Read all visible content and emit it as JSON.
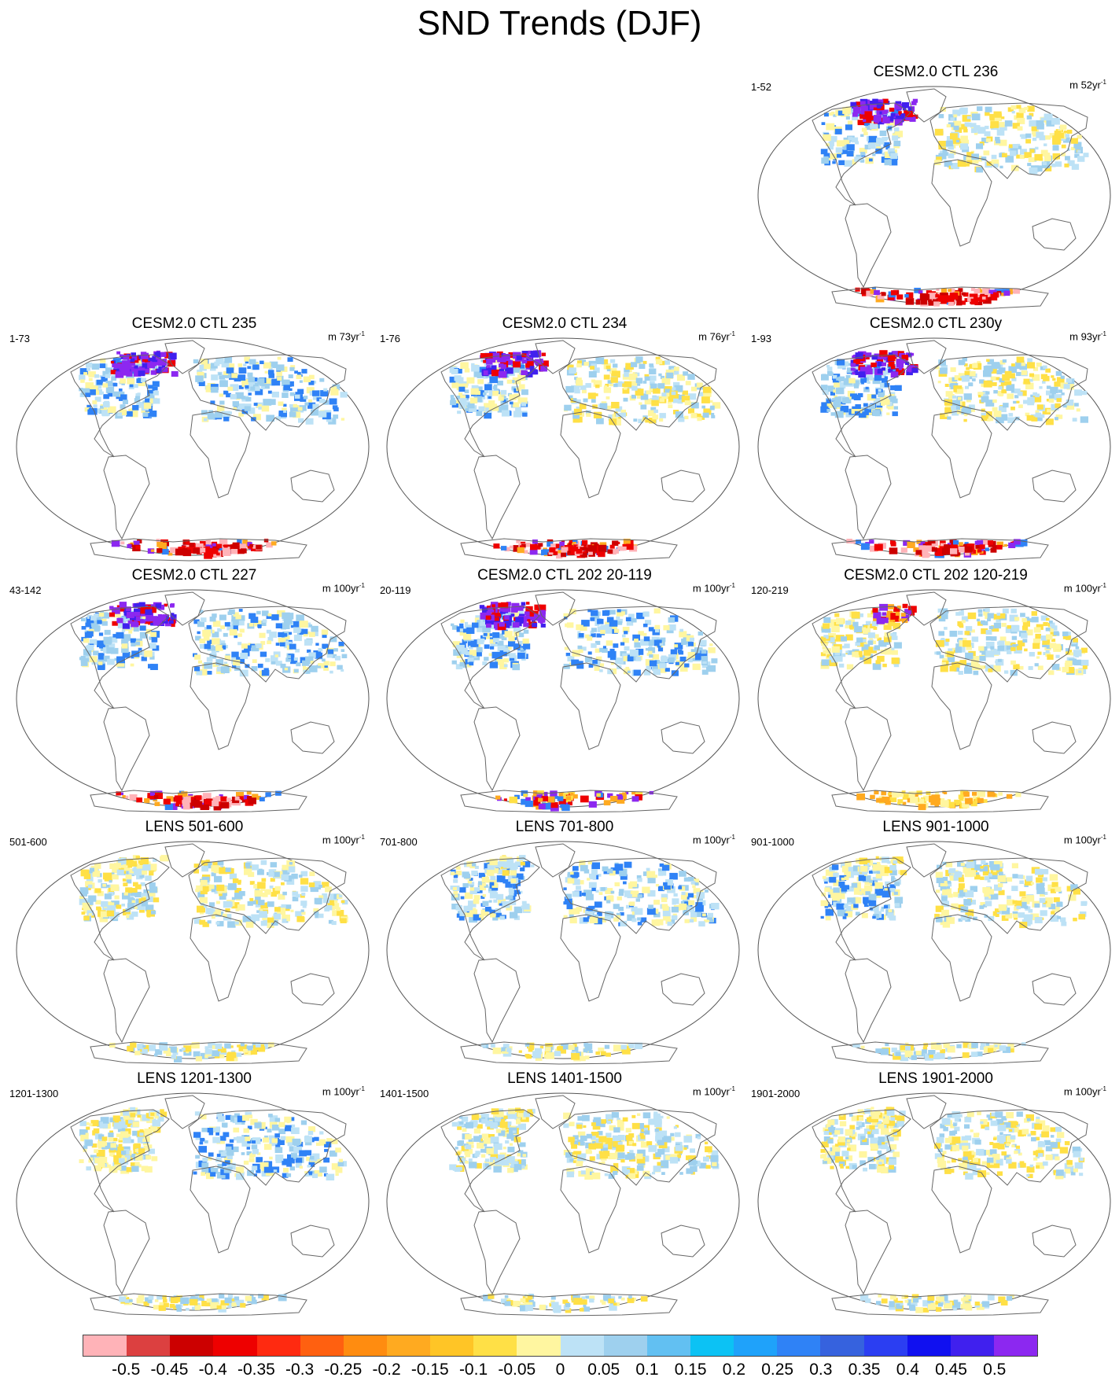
{
  "title": "SND Trends (DJF)",
  "panels": [
    {
      "id": "p236",
      "title": "CESM2.0 CTL 236",
      "left": "1-52",
      "right": "m 52yr",
      "sup": "-1",
      "na_pattern": "purple",
      "ant": "red",
      "eurasia": "yellow"
    },
    {
      "id": "p235",
      "title": "CESM2.0 CTL 235",
      "left": "1-73",
      "right": "m 73yr",
      "sup": "-1",
      "na_pattern": "purple",
      "ant": "red",
      "eurasia": "blue"
    },
    {
      "id": "p234",
      "title": "CESM2.0 CTL 234",
      "left": "1-76",
      "right": "m 76yr",
      "sup": "-1",
      "na_pattern": "purple",
      "ant": "red",
      "eurasia": "yellow"
    },
    {
      "id": "p230",
      "title": "CESM2.0 CTL 230y",
      "left": "1-93",
      "right": "m 93yr",
      "sup": "-1",
      "na_pattern": "purple",
      "ant": "red",
      "eurasia": "yellow"
    },
    {
      "id": "p227",
      "title": "CESM2.0 CTL 227",
      "left": "43-142",
      "right": "m 100yr",
      "sup": "-1",
      "na_pattern": "purple",
      "ant": "red",
      "eurasia": "blue"
    },
    {
      "id": "p202a",
      "title": "CESM2.0 CTL 202 20-119",
      "left": "20-119",
      "right": "m 100yr",
      "sup": "-1",
      "na_pattern": "purple",
      "ant": "orange",
      "eurasia": "blue"
    },
    {
      "id": "p202b",
      "title": "CESM2.0 CTL 202 120-219",
      "left": "120-219",
      "right": "m 100yr",
      "sup": "-1",
      "na_pattern": "mixed",
      "ant": "yellow",
      "eurasia": "yellow"
    },
    {
      "id": "l501",
      "title": "LENS 501-600",
      "left": "501-600",
      "right": "m 100yr",
      "sup": "-1",
      "na_pattern": "yellow",
      "ant": "light",
      "eurasia": "yellow"
    },
    {
      "id": "l701",
      "title": "LENS 701-800",
      "left": "701-800",
      "right": "m 100yr",
      "sup": "-1",
      "na_pattern": "blue",
      "ant": "light",
      "eurasia": "blue"
    },
    {
      "id": "l901",
      "title": "LENS 901-1000",
      "left": "901-1000",
      "right": "m 100yr",
      "sup": "-1",
      "na_pattern": "blue",
      "ant": "light",
      "eurasia": "yellow"
    },
    {
      "id": "l1201",
      "title": "LENS 1201-1300",
      "left": "1201-1300",
      "right": "m 100yr",
      "sup": "-1",
      "na_pattern": "yellow",
      "ant": "light",
      "eurasia": "blue"
    },
    {
      "id": "l1401",
      "title": "LENS 1401-1500",
      "left": "1401-1500",
      "right": "m 100yr",
      "sup": "-1",
      "na_pattern": "yellow",
      "ant": "light",
      "eurasia": "yellow"
    },
    {
      "id": "l1901",
      "title": "LENS 1901-2000",
      "left": "1901-2000",
      "right": "m 100yr",
      "sup": "-1",
      "na_pattern": "yellow",
      "ant": "light",
      "eurasia": "yellow"
    }
  ],
  "colorbar": {
    "labels": [
      "-0.5",
      "-0.45",
      "-0.4",
      "-0.35",
      "-0.3",
      "-0.25",
      "-0.2",
      "-0.15",
      "-0.1",
      "-0.05",
      "0",
      "0.05",
      "0.1",
      "0.15",
      "0.2",
      "0.25",
      "0.3",
      "0.35",
      "0.4",
      "0.45",
      "0.5"
    ],
    "colors": [
      "#ffb3b8",
      "#dc4040",
      "#cc0000",
      "#ee0000",
      "#ff2a10",
      "#ff6010",
      "#ff8c10",
      "#ffaa20",
      "#ffc526",
      "#ffe046",
      "#fff6a0",
      "#bde2f6",
      "#9ed0ee",
      "#62c0f2",
      "#0cc2f4",
      "#1fa2fa",
      "#2f82f6",
      "#3662de",
      "#2b3ef2",
      "#1010f0",
      "#4020ee",
      "#8c28f0"
    ]
  }
}
